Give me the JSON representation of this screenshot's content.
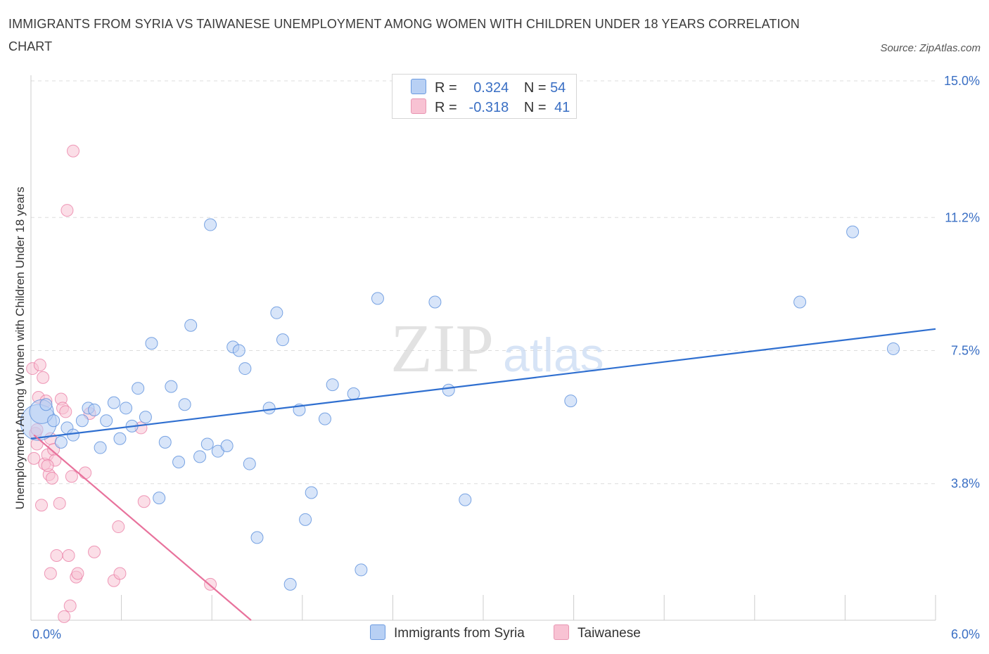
{
  "title": "IMMIGRANTS FROM SYRIA VS TAIWANESE UNEMPLOYMENT AMONG WOMEN WITH CHILDREN UNDER 18 YEARS CORRELATION CHART",
  "source": "Source: ZipAtlas.com",
  "watermark": {
    "zip": "ZIP",
    "atlas": "atlas"
  },
  "colors": {
    "blue": "#3a6fc4",
    "blue_fill": "#b8d0f4",
    "blue_line": "#2f6fd0",
    "pink": "#e8729c",
    "pink_fill": "#f8c2d3",
    "grid": "#dddddd"
  },
  "legend": {
    "rows": [
      {
        "r_label": "R =",
        "r_value": "0.324",
        "n_label": "N =",
        "n_value": "54"
      },
      {
        "r_label": "R =",
        "r_value": "-0.318",
        "n_label": "N =",
        "n_value": "41"
      }
    ]
  },
  "series_labels": {
    "syria": "Immigrants from Syria",
    "taiwanese": "Taiwanese"
  },
  "chart_data": {
    "type": "scatter",
    "title": "IMMIGRANTS FROM SYRIA VS TAIWANESE UNEMPLOYMENT AMONG WOMEN WITH CHILDREN UNDER 18 YEARS CORRELATION CHART",
    "xlabel": "",
    "ylabel": "Unemployment Among Women with Children Under 18 years",
    "xlim": [
      0,
      6.0
    ],
    "ylim": [
      0,
      15.0
    ],
    "x_tick_labels": [
      "0.0%",
      "6.0%"
    ],
    "y_ticks": [
      3.8,
      7.5,
      11.2,
      15.0
    ],
    "y_tick_labels": [
      "3.8%",
      "7.5%",
      "11.2%",
      "15.0%"
    ],
    "grid": true,
    "legend_position": "top-center",
    "series": [
      {
        "name": "Immigrants from Syria",
        "R": 0.324,
        "N": 54,
        "trend": {
          "x": [
            0.0,
            6.0
          ],
          "y": [
            5.05,
            8.1
          ]
        },
        "points": [
          {
            "x": 0.05,
            "y": 5.5,
            "s": 3
          },
          {
            "x": 0.07,
            "y": 5.8,
            "s": 2
          },
          {
            "x": 0.1,
            "y": 6.0
          },
          {
            "x": 0.15,
            "y": 5.55
          },
          {
            "x": 0.2,
            "y": 4.95
          },
          {
            "x": 0.24,
            "y": 5.35
          },
          {
            "x": 0.28,
            "y": 5.15
          },
          {
            "x": 0.34,
            "y": 5.55
          },
          {
            "x": 0.38,
            "y": 5.9
          },
          {
            "x": 0.42,
            "y": 5.85
          },
          {
            "x": 0.46,
            "y": 4.8
          },
          {
            "x": 0.5,
            "y": 5.55
          },
          {
            "x": 0.55,
            "y": 6.05
          },
          {
            "x": 0.59,
            "y": 5.05
          },
          {
            "x": 0.63,
            "y": 5.9
          },
          {
            "x": 0.67,
            "y": 5.4
          },
          {
            "x": 0.71,
            "y": 6.45
          },
          {
            "x": 0.76,
            "y": 5.65
          },
          {
            "x": 0.8,
            "y": 7.7
          },
          {
            "x": 0.85,
            "y": 3.4
          },
          {
            "x": 0.89,
            "y": 4.95
          },
          {
            "x": 0.93,
            "y": 6.5
          },
          {
            "x": 0.98,
            "y": 4.4
          },
          {
            "x": 1.02,
            "y": 6.0
          },
          {
            "x": 1.06,
            "y": 8.2
          },
          {
            "x": 1.12,
            "y": 4.55
          },
          {
            "x": 1.17,
            "y": 4.9
          },
          {
            "x": 1.19,
            "y": 11.0
          },
          {
            "x": 1.24,
            "y": 4.7
          },
          {
            "x": 1.3,
            "y": 4.85
          },
          {
            "x": 1.34,
            "y": 7.6
          },
          {
            "x": 1.38,
            "y": 7.5
          },
          {
            "x": 1.42,
            "y": 7.0
          },
          {
            "x": 1.45,
            "y": 4.35
          },
          {
            "x": 1.5,
            "y": 2.3
          },
          {
            "x": 1.58,
            "y": 5.9
          },
          {
            "x": 1.63,
            "y": 8.55
          },
          {
            "x": 1.67,
            "y": 7.8
          },
          {
            "x": 1.72,
            "y": 1.0
          },
          {
            "x": 1.78,
            "y": 5.85
          },
          {
            "x": 1.82,
            "y": 2.8
          },
          {
            "x": 1.86,
            "y": 3.55
          },
          {
            "x": 1.95,
            "y": 5.6
          },
          {
            "x": 2.0,
            "y": 6.55
          },
          {
            "x": 2.14,
            "y": 6.3
          },
          {
            "x": 2.19,
            "y": 1.4
          },
          {
            "x": 2.3,
            "y": 8.95
          },
          {
            "x": 2.68,
            "y": 8.85
          },
          {
            "x": 2.77,
            "y": 6.4
          },
          {
            "x": 2.88,
            "y": 3.35
          },
          {
            "x": 3.58,
            "y": 6.1
          },
          {
            "x": 5.1,
            "y": 8.85
          },
          {
            "x": 5.45,
            "y": 10.8
          },
          {
            "x": 5.72,
            "y": 7.55
          }
        ]
      },
      {
        "name": "Taiwanese",
        "R": -0.318,
        "N": 41,
        "trend": {
          "x": [
            0.02,
            1.46
          ],
          "y": [
            5.15,
            0.0
          ]
        },
        "points": [
          {
            "x": 0.01,
            "y": 7.0
          },
          {
            "x": 0.02,
            "y": 4.5
          },
          {
            "x": 0.03,
            "y": 5.2
          },
          {
            "x": 0.04,
            "y": 4.9
          },
          {
            "x": 0.05,
            "y": 6.2
          },
          {
            "x": 0.06,
            "y": 7.1
          },
          {
            "x": 0.07,
            "y": 3.2
          },
          {
            "x": 0.08,
            "y": 6.75
          },
          {
            "x": 0.09,
            "y": 4.35
          },
          {
            "x": 0.1,
            "y": 6.1
          },
          {
            "x": 0.11,
            "y": 4.6
          },
          {
            "x": 0.12,
            "y": 4.05
          },
          {
            "x": 0.13,
            "y": 5.05
          },
          {
            "x": 0.13,
            "y": 1.3
          },
          {
            "x": 0.14,
            "y": 3.95
          },
          {
            "x": 0.15,
            "y": 4.75
          },
          {
            "x": 0.16,
            "y": 4.45
          },
          {
            "x": 0.17,
            "y": 1.8
          },
          {
            "x": 0.19,
            "y": 3.25
          },
          {
            "x": 0.2,
            "y": 6.15
          },
          {
            "x": 0.21,
            "y": 5.9
          },
          {
            "x": 0.22,
            "y": 0.1
          },
          {
            "x": 0.23,
            "y": 5.8
          },
          {
            "x": 0.24,
            "y": 11.4
          },
          {
            "x": 0.25,
            "y": 1.8
          },
          {
            "x": 0.26,
            "y": 0.4
          },
          {
            "x": 0.27,
            "y": 4.0
          },
          {
            "x": 0.28,
            "y": 13.05
          },
          {
            "x": 0.3,
            "y": 1.2
          },
          {
            "x": 0.31,
            "y": 1.3
          },
          {
            "x": 0.36,
            "y": 4.1
          },
          {
            "x": 0.39,
            "y": 5.75
          },
          {
            "x": 0.42,
            "y": 1.9
          },
          {
            "x": 0.55,
            "y": 1.1
          },
          {
            "x": 0.58,
            "y": 2.6
          },
          {
            "x": 0.59,
            "y": 1.3
          },
          {
            "x": 0.73,
            "y": 5.35
          },
          {
            "x": 0.75,
            "y": 3.3
          },
          {
            "x": 1.19,
            "y": 1.0
          },
          {
            "x": 0.04,
            "y": 5.3
          },
          {
            "x": 0.11,
            "y": 4.3
          }
        ]
      }
    ]
  }
}
